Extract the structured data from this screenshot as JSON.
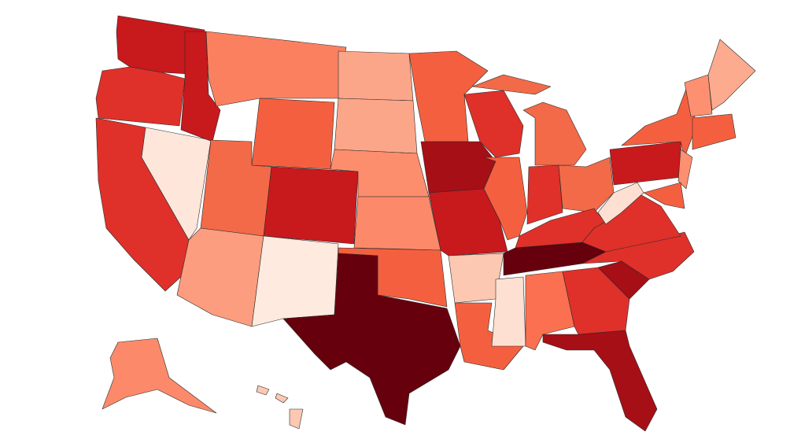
{
  "map": {
    "fills": [
      "#c8191d",
      "#e0302a",
      "#fee6da",
      "#fb8060",
      "#f4603f",
      "#f26a48",
      "#fc9d7f",
      "#feeade",
      "#fca689",
      "#fc8e6e",
      "#67000d",
      "#a50f15",
      "#fcc8b2",
      "#fee0d2",
      "#fb7050",
      "#fc9070",
      "#fcab8f",
      "#fc8a6a"
    ]
  }
}
